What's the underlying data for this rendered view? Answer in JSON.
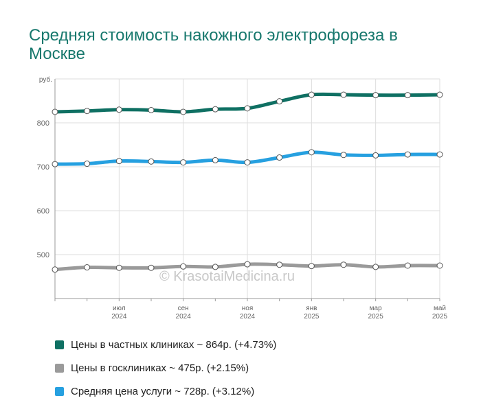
{
  "title": "Средняя стоимость накожного электрофореза в Москве",
  "watermark": "© KrasotaiMedicina.ru",
  "colors": {
    "private": "#0f7063",
    "public": "#9a9a9a",
    "average": "#26a0e0",
    "grid": "#dddddd",
    "axis": "#999999",
    "tick_text": "#666666"
  },
  "legend": [
    {
      "label": "Цены в частных клиниках ~ 864р. (+4.73%)",
      "color": "#0f7063"
    },
    {
      "label": "Цены в госклиниках ~ 475р. (+2.15%)",
      "color": "#9a9a9a"
    },
    {
      "label": "Средняя цена услуги ~ 728р. (+3.12%)",
      "color": "#26a0e0"
    }
  ],
  "chart_data": {
    "type": "line",
    "title": "Средняя стоимость накожного электрофореза в Москве",
    "ylabel": "руб.",
    "ylim": [
      400,
      900
    ],
    "yticks": [
      500,
      600,
      700,
      800
    ],
    "x": [
      "2024-05",
      "2024-06",
      "2024-07",
      "2024-08",
      "2024-09",
      "2024-10",
      "2024-11",
      "2024-12",
      "2025-01",
      "2025-02",
      "2025-03",
      "2025-04",
      "2025-05"
    ],
    "xtick_labels": [
      {
        "x": "2024-07",
        "line1": "июл",
        "line2": "2024"
      },
      {
        "x": "2024-09",
        "line1": "сен",
        "line2": "2024"
      },
      {
        "x": "2024-11",
        "line1": "ноя",
        "line2": "2024"
      },
      {
        "x": "2025-01",
        "line1": "янв",
        "line2": "2025"
      },
      {
        "x": "2025-03",
        "line1": "мар",
        "line2": "2025"
      },
      {
        "x": "2025-05",
        "line1": "май",
        "line2": "2025"
      }
    ],
    "series": [
      {
        "name": "Цены в частных клиниках",
        "color": "#0f7063",
        "values": [
          825,
          827,
          830,
          829,
          825,
          831,
          833,
          849,
          864,
          864,
          863,
          863,
          864
        ]
      },
      {
        "name": "Средняя цена услуги",
        "color": "#26a0e0",
        "values": [
          706,
          707,
          713,
          712,
          710,
          715,
          710,
          721,
          733,
          727,
          726,
          728,
          728
        ]
      },
      {
        "name": "Цены в госклиниках",
        "color": "#9a9a9a",
        "values": [
          466,
          471,
          470,
          470,
          473,
          472,
          478,
          477,
          474,
          477,
          472,
          475,
          475
        ]
      }
    ]
  }
}
